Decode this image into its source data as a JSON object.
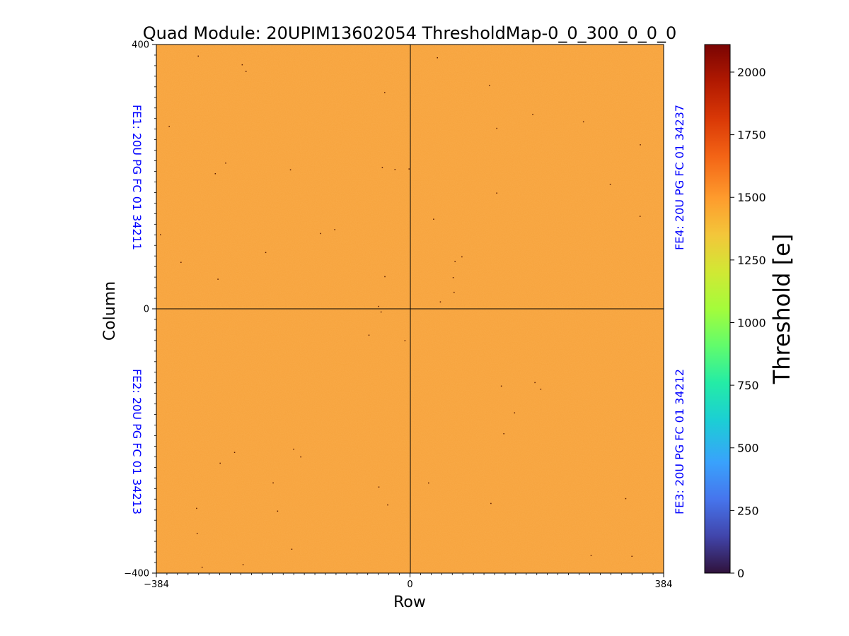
{
  "chart_data": {
    "type": "heatmap",
    "title": "Quad Module: 20UPIM13602054 ThresholdMap-0_0_300_0_0_0",
    "xlabel": "Row",
    "ylabel": "Column",
    "xlim": [
      -384,
      384
    ],
    "ylim": [
      -400,
      400
    ],
    "xticks": [
      -384,
      0,
      384
    ],
    "yticks": [
      -400,
      0,
      400
    ],
    "x_tick_labels": [
      "−384",
      "0",
      "384"
    ],
    "y_tick_labels": [
      "−400",
      "0",
      "400"
    ],
    "colorbar": {
      "label": "Threshold [e]",
      "range": [
        0,
        2110
      ],
      "ticks": [
        0,
        250,
        500,
        750,
        1000,
        1250,
        1500,
        1750,
        2000
      ],
      "tick_labels": [
        "0",
        "250",
        "500",
        "750",
        "1000",
        "1250",
        "1500",
        "1750",
        "2000"
      ],
      "colormap": "turbo"
    },
    "grid": false,
    "dominant_value": 1520,
    "chip_labels": [
      {
        "label": "FE1: 20U PG FC 01 34211",
        "quadrant": "top-left"
      },
      {
        "label": "FE2: 20U PG FC 01 34213",
        "quadrant": "bottom-left"
      },
      {
        "label": "FE4: 20U PG FC 01 34237",
        "quadrant": "top-right"
      },
      {
        "label": "FE3: 20U PG FC 01 34212",
        "quadrant": "bottom-right"
      }
    ],
    "colors": {
      "fill": "#f7a23b",
      "chip_label": "#0000ff"
    }
  }
}
